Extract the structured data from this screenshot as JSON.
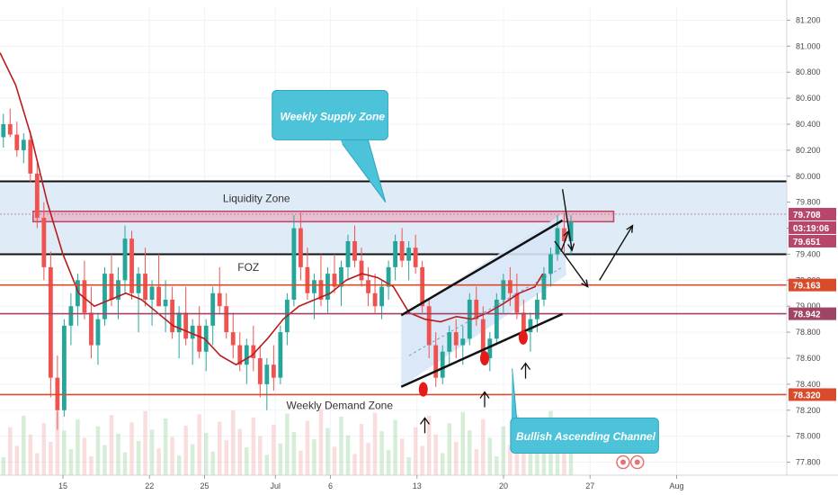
{
  "chart_data": {
    "type": "candlestick",
    "y_range": [
      77.7,
      81.3
    ],
    "x_range": [
      0,
      100
    ],
    "y_ticks": [
      "81.200",
      "81.000",
      "80.800",
      "80.600",
      "80.400",
      "80.200",
      "80.000",
      "79.800",
      "79.600",
      "79.400",
      "79.200",
      "79.000",
      "78.800",
      "78.600",
      "78.400",
      "78.200",
      "78.000",
      "77.800"
    ],
    "y_tick_values": [
      81.2,
      81.0,
      80.8,
      80.6,
      80.4,
      80.2,
      80.0,
      79.8,
      79.6,
      79.4,
      79.2,
      79.0,
      78.8,
      78.6,
      78.4,
      78.2,
      78.0,
      77.8
    ],
    "x_ticks": [
      {
        "label": "15",
        "x": 8
      },
      {
        "label": "22",
        "x": 19
      },
      {
        "label": "25",
        "x": 26
      },
      {
        "label": "Jul",
        "x": 35
      },
      {
        "label": "6",
        "x": 42
      },
      {
        "label": "13",
        "x": 53
      },
      {
        "label": "20",
        "x": 64
      },
      {
        "label": "27",
        "x": 75
      },
      {
        "label": "Aug",
        "x": 86
      }
    ],
    "price_labels": [
      {
        "text": "79.708",
        "value": 79.708,
        "color": "#b8466a"
      },
      {
        "text": "03:19:06",
        "value": 79.68,
        "color": "#b8466a"
      },
      {
        "text": "79.651",
        "value": 79.651,
        "color": "#b8466a"
      },
      {
        "text": "79.163",
        "value": 79.163,
        "color": "#d84c2c"
      },
      {
        "text": "78.942",
        "value": 78.942,
        "color": "#a04466"
      },
      {
        "text": "78.320",
        "value": 78.32,
        "color": "#d84c2c"
      }
    ],
    "annotations": {
      "weekly_supply_zone": "Weekly Supply Zone",
      "liquidity_zone": "Liquidity Zone",
      "foz": "FOZ",
      "weekly_demand_zone": "Weekly Demand Zone",
      "bullish_channel": "Bullish Ascending Channel"
    },
    "levels": {
      "liquidity_zone": [
        79.4,
        79.96
      ],
      "supply_band": [
        79.65,
        79.73
      ],
      "foz_line": 79.163,
      "channel_top_line": 78.942,
      "demand_line": 78.32
    },
    "channel": {
      "upper": [
        [
          51,
          78.93
        ],
        [
          71.5,
          79.66
        ]
      ],
      "lower": [
        [
          51,
          78.38
        ],
        [
          71.5,
          78.94
        ]
      ]
    },
    "colors": {
      "up": "#26a69a",
      "down": "#ef5350",
      "ma": "#b71c1c",
      "zone_fill": "#dbeaf7",
      "callout": "#4cc3d9",
      "level_red": "#d84c2c",
      "level_purple": "#a04466"
    },
    "candles": [
      [
        80.3,
        80.48,
        80.22,
        80.4
      ],
      [
        80.4,
        80.52,
        80.3,
        80.32
      ],
      [
        80.32,
        80.42,
        80.15,
        80.2
      ],
      [
        80.2,
        80.33,
        80.1,
        80.28
      ],
      [
        80.28,
        80.35,
        79.95,
        80.02
      ],
      [
        80.02,
        80.1,
        79.6,
        79.68
      ],
      [
        79.68,
        79.8,
        79.2,
        79.3
      ],
      [
        79.3,
        79.42,
        78.3,
        78.45
      ],
      [
        78.45,
        78.62,
        78.05,
        78.2
      ],
      [
        78.2,
        78.9,
        78.15,
        78.85
      ],
      [
        78.85,
        79.1,
        78.7,
        79.0
      ],
      [
        79.0,
        79.25,
        78.85,
        79.2
      ],
      [
        79.2,
        79.35,
        78.9,
        78.95
      ],
      [
        78.95,
        79.15,
        78.6,
        78.7
      ],
      [
        78.7,
        78.95,
        78.55,
        78.9
      ],
      [
        78.9,
        79.3,
        78.85,
        79.25
      ],
      [
        79.25,
        79.4,
        79.0,
        79.05
      ],
      [
        79.05,
        79.3,
        78.9,
        79.2
      ],
      [
        79.2,
        79.62,
        79.1,
        79.52
      ],
      [
        79.52,
        79.58,
        79.05,
        79.1
      ],
      [
        79.1,
        79.3,
        78.8,
        79.25
      ],
      [
        79.25,
        79.45,
        79.0,
        79.05
      ],
      [
        79.05,
        79.2,
        78.85,
        79.15
      ],
      [
        79.15,
        79.4,
        79.0,
        79.0
      ],
      [
        79.0,
        79.2,
        78.8,
        79.05
      ],
      [
        79.05,
        79.15,
        78.75,
        78.8
      ],
      [
        78.8,
        79.0,
        78.6,
        78.95
      ],
      [
        78.95,
        79.15,
        78.7,
        78.75
      ],
      [
        78.75,
        78.9,
        78.55,
        78.85
      ],
      [
        78.85,
        79.0,
        78.6,
        78.65
      ],
      [
        78.65,
        78.9,
        78.5,
        78.85
      ],
      [
        78.85,
        79.15,
        78.7,
        79.1
      ],
      [
        79.1,
        79.3,
        78.95,
        79.0
      ],
      [
        79.0,
        79.1,
        78.75,
        78.8
      ],
      [
        78.8,
        78.95,
        78.6,
        78.7
      ],
      [
        78.7,
        78.8,
        78.5,
        78.55
      ],
      [
        78.55,
        78.75,
        78.4,
        78.7
      ],
      [
        78.7,
        78.85,
        78.5,
        78.6
      ],
      [
        78.6,
        78.7,
        78.3,
        78.4
      ],
      [
        78.4,
        78.6,
        78.2,
        78.55
      ],
      [
        78.55,
        78.7,
        78.35,
        78.45
      ],
      [
        78.45,
        78.85,
        78.4,
        78.8
      ],
      [
        78.8,
        79.1,
        78.7,
        79.05
      ],
      [
        79.05,
        79.7,
        79.0,
        79.6
      ],
      [
        79.6,
        79.72,
        79.2,
        79.3
      ],
      [
        79.3,
        79.45,
        79.05,
        79.1
      ],
      [
        79.1,
        79.25,
        78.9,
        79.2
      ],
      [
        79.2,
        79.4,
        79.0,
        79.05
      ],
      [
        79.05,
        79.3,
        78.95,
        79.25
      ],
      [
        79.25,
        79.4,
        79.1,
        79.15
      ],
      [
        79.15,
        79.35,
        79.0,
        79.3
      ],
      [
        79.3,
        79.55,
        79.2,
        79.5
      ],
      [
        79.5,
        79.62,
        79.3,
        79.35
      ],
      [
        79.35,
        79.45,
        79.15,
        79.2
      ],
      [
        79.2,
        79.3,
        79.0,
        79.1
      ],
      [
        79.1,
        79.25,
        78.95,
        79.0
      ],
      [
        79.0,
        79.2,
        78.9,
        79.15
      ],
      [
        79.15,
        79.35,
        79.05,
        79.3
      ],
      [
        79.3,
        79.55,
        79.2,
        79.5
      ],
      [
        79.5,
        79.6,
        79.3,
        79.35
      ],
      [
        79.35,
        79.5,
        79.2,
        79.45
      ],
      [
        79.45,
        79.55,
        79.25,
        79.3
      ],
      [
        79.3,
        79.35,
        78.95,
        79.0
      ],
      [
        79.0,
        79.05,
        78.6,
        78.7
      ],
      [
        78.7,
        78.8,
        78.38,
        78.45
      ],
      [
        78.45,
        78.7,
        78.4,
        78.65
      ],
      [
        78.65,
        78.85,
        78.55,
        78.8
      ],
      [
        78.8,
        78.9,
        78.6,
        78.7
      ],
      [
        78.7,
        78.85,
        78.55,
        78.75
      ],
      [
        78.75,
        79.1,
        78.7,
        79.05
      ],
      [
        79.05,
        79.15,
        78.85,
        78.9
      ],
      [
        78.9,
        79.0,
        78.55,
        78.6
      ],
      [
        78.6,
        78.8,
        78.5,
        78.75
      ],
      [
        78.75,
        79.1,
        78.7,
        79.05
      ],
      [
        79.05,
        79.25,
        78.95,
        79.2
      ],
      [
        79.2,
        79.3,
        79.0,
        79.1
      ],
      [
        79.1,
        79.25,
        78.9,
        78.95
      ],
      [
        78.95,
        79.05,
        78.75,
        78.8
      ],
      [
        78.8,
        78.95,
        78.65,
        78.9
      ],
      [
        78.9,
        79.1,
        78.8,
        79.05
      ],
      [
        79.05,
        79.3,
        79.0,
        79.25
      ],
      [
        79.25,
        79.45,
        79.15,
        79.4
      ],
      [
        79.4,
        79.7,
        79.35,
        79.6
      ],
      [
        79.6,
        79.72,
        79.4,
        79.5
      ],
      [
        79.5,
        79.7,
        79.4,
        79.65
      ]
    ],
    "moving_average": [
      [
        0,
        80.95
      ],
      [
        2,
        80.7
      ],
      [
        4,
        80.3
      ],
      [
        6,
        79.8
      ],
      [
        8,
        79.4
      ],
      [
        10,
        79.1
      ],
      [
        12,
        79.0
      ],
      [
        14,
        79.05
      ],
      [
        16,
        79.1
      ],
      [
        18,
        79.05
      ],
      [
        20,
        78.95
      ],
      [
        22,
        78.85
      ],
      [
        24,
        78.8
      ],
      [
        26,
        78.75
      ],
      [
        28,
        78.62
      ],
      [
        30,
        78.55
      ],
      [
        32,
        78.62
      ],
      [
        34,
        78.75
      ],
      [
        36,
        78.9
      ],
      [
        38,
        79.0
      ],
      [
        40,
        79.05
      ],
      [
        42,
        79.1
      ],
      [
        44,
        79.2
      ],
      [
        46,
        79.25
      ],
      [
        48,
        79.22
      ],
      [
        50,
        79.15
      ],
      [
        51,
        79.05
      ],
      [
        52,
        78.95
      ],
      [
        54,
        78.9
      ],
      [
        56,
        78.88
      ],
      [
        58,
        78.92
      ],
      [
        60,
        78.9
      ],
      [
        62,
        78.95
      ],
      [
        64,
        79.02
      ],
      [
        66,
        79.1
      ],
      [
        68,
        79.15
      ],
      [
        69,
        79.25
      ]
    ]
  }
}
